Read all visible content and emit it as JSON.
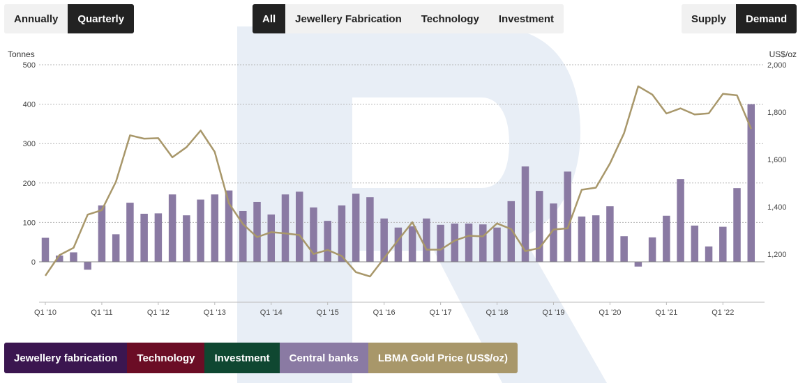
{
  "toggles": {
    "period": [
      {
        "label": "Annually",
        "active": false
      },
      {
        "label": "Quarterly",
        "active": true
      }
    ],
    "sector": [
      {
        "label": "All",
        "active": true
      },
      {
        "label": "Jewellery Fabrication",
        "active": false
      },
      {
        "label": "Technology",
        "active": false
      },
      {
        "label": "Investment",
        "active": false
      }
    ],
    "flow": [
      {
        "label": "Supply",
        "active": false
      },
      {
        "label": "Demand",
        "active": true
      }
    ]
  },
  "legend": [
    {
      "label": "Jewellery fabrication",
      "color": "#3b1650"
    },
    {
      "label": "Technology",
      "color": "#6b0d25"
    },
    {
      "label": "Investment",
      "color": "#0f4731"
    },
    {
      "label": "Central banks",
      "color": "#8a7aa3"
    },
    {
      "label": "LBMA Gold Price (US$/oz)",
      "color": "#a8976a"
    }
  ],
  "chart_data": {
    "type": "bar",
    "title": "",
    "xlabel": "",
    "ylabel": "Tonnes",
    "y2label": "US$/oz",
    "ylim": [
      -100,
      500
    ],
    "y2lim": [
      1000,
      2000
    ],
    "yticks": [
      0,
      100,
      200,
      300,
      400,
      500
    ],
    "y2ticks": [
      1200,
      1400,
      1600,
      1800,
      2000
    ],
    "y2tick_labels": [
      "1,200",
      "1,400",
      "1,600",
      "1,800",
      "2,000"
    ],
    "xtick_labels": [
      {
        "index": 0,
        "label": "Q1 '10"
      },
      {
        "index": 4,
        "label": "Q1 '11"
      },
      {
        "index": 8,
        "label": "Q1 '12"
      },
      {
        "index": 12,
        "label": "Q1 '13"
      },
      {
        "index": 16,
        "label": "Q1 '14"
      },
      {
        "index": 20,
        "label": "Q1 '15"
      },
      {
        "index": 24,
        "label": "Q1 '16"
      },
      {
        "index": 28,
        "label": "Q1 '17"
      },
      {
        "index": 32,
        "label": "Q1 '18"
      },
      {
        "index": 36,
        "label": "Q1 '19"
      },
      {
        "index": 40,
        "label": "Q1 '20"
      },
      {
        "index": 44,
        "label": "Q1 '21"
      },
      {
        "index": 48,
        "label": "Q1 '22"
      }
    ],
    "grid": true,
    "series": [
      {
        "name": "Central banks",
        "type": "bar",
        "axis": "left",
        "color": "#8a7aa3",
        "values": [
          61,
          16,
          24,
          -20,
          143,
          70,
          150,
          122,
          123,
          171,
          118,
          158,
          171,
          181,
          129,
          152,
          120,
          171,
          178,
          138,
          104,
          143,
          173,
          164,
          110,
          87,
          90,
          110,
          94,
          97,
          97,
          95,
          87,
          154,
          242,
          180,
          148,
          229,
          115,
          118,
          141,
          65,
          -12,
          62,
          117,
          210,
          92,
          39,
          89,
          187,
          400
        ]
      },
      {
        "name": "LBMA Gold Price (US$/oz)",
        "type": "line",
        "axis": "right",
        "color": "#a8976a",
        "values": [
          1109,
          1196,
          1227,
          1367,
          1386,
          1506,
          1702,
          1688,
          1690,
          1609,
          1652,
          1722,
          1632,
          1415,
          1327,
          1272,
          1293,
          1288,
          1281,
          1201,
          1218,
          1192,
          1124,
          1106,
          1183,
          1260,
          1335,
          1219,
          1219,
          1257,
          1278,
          1275,
          1330,
          1306,
          1213,
          1226,
          1304,
          1309,
          1472,
          1481,
          1583,
          1711,
          1909,
          1874,
          1794,
          1816,
          1790,
          1795,
          1877,
          1871,
          1729
        ]
      }
    ]
  }
}
